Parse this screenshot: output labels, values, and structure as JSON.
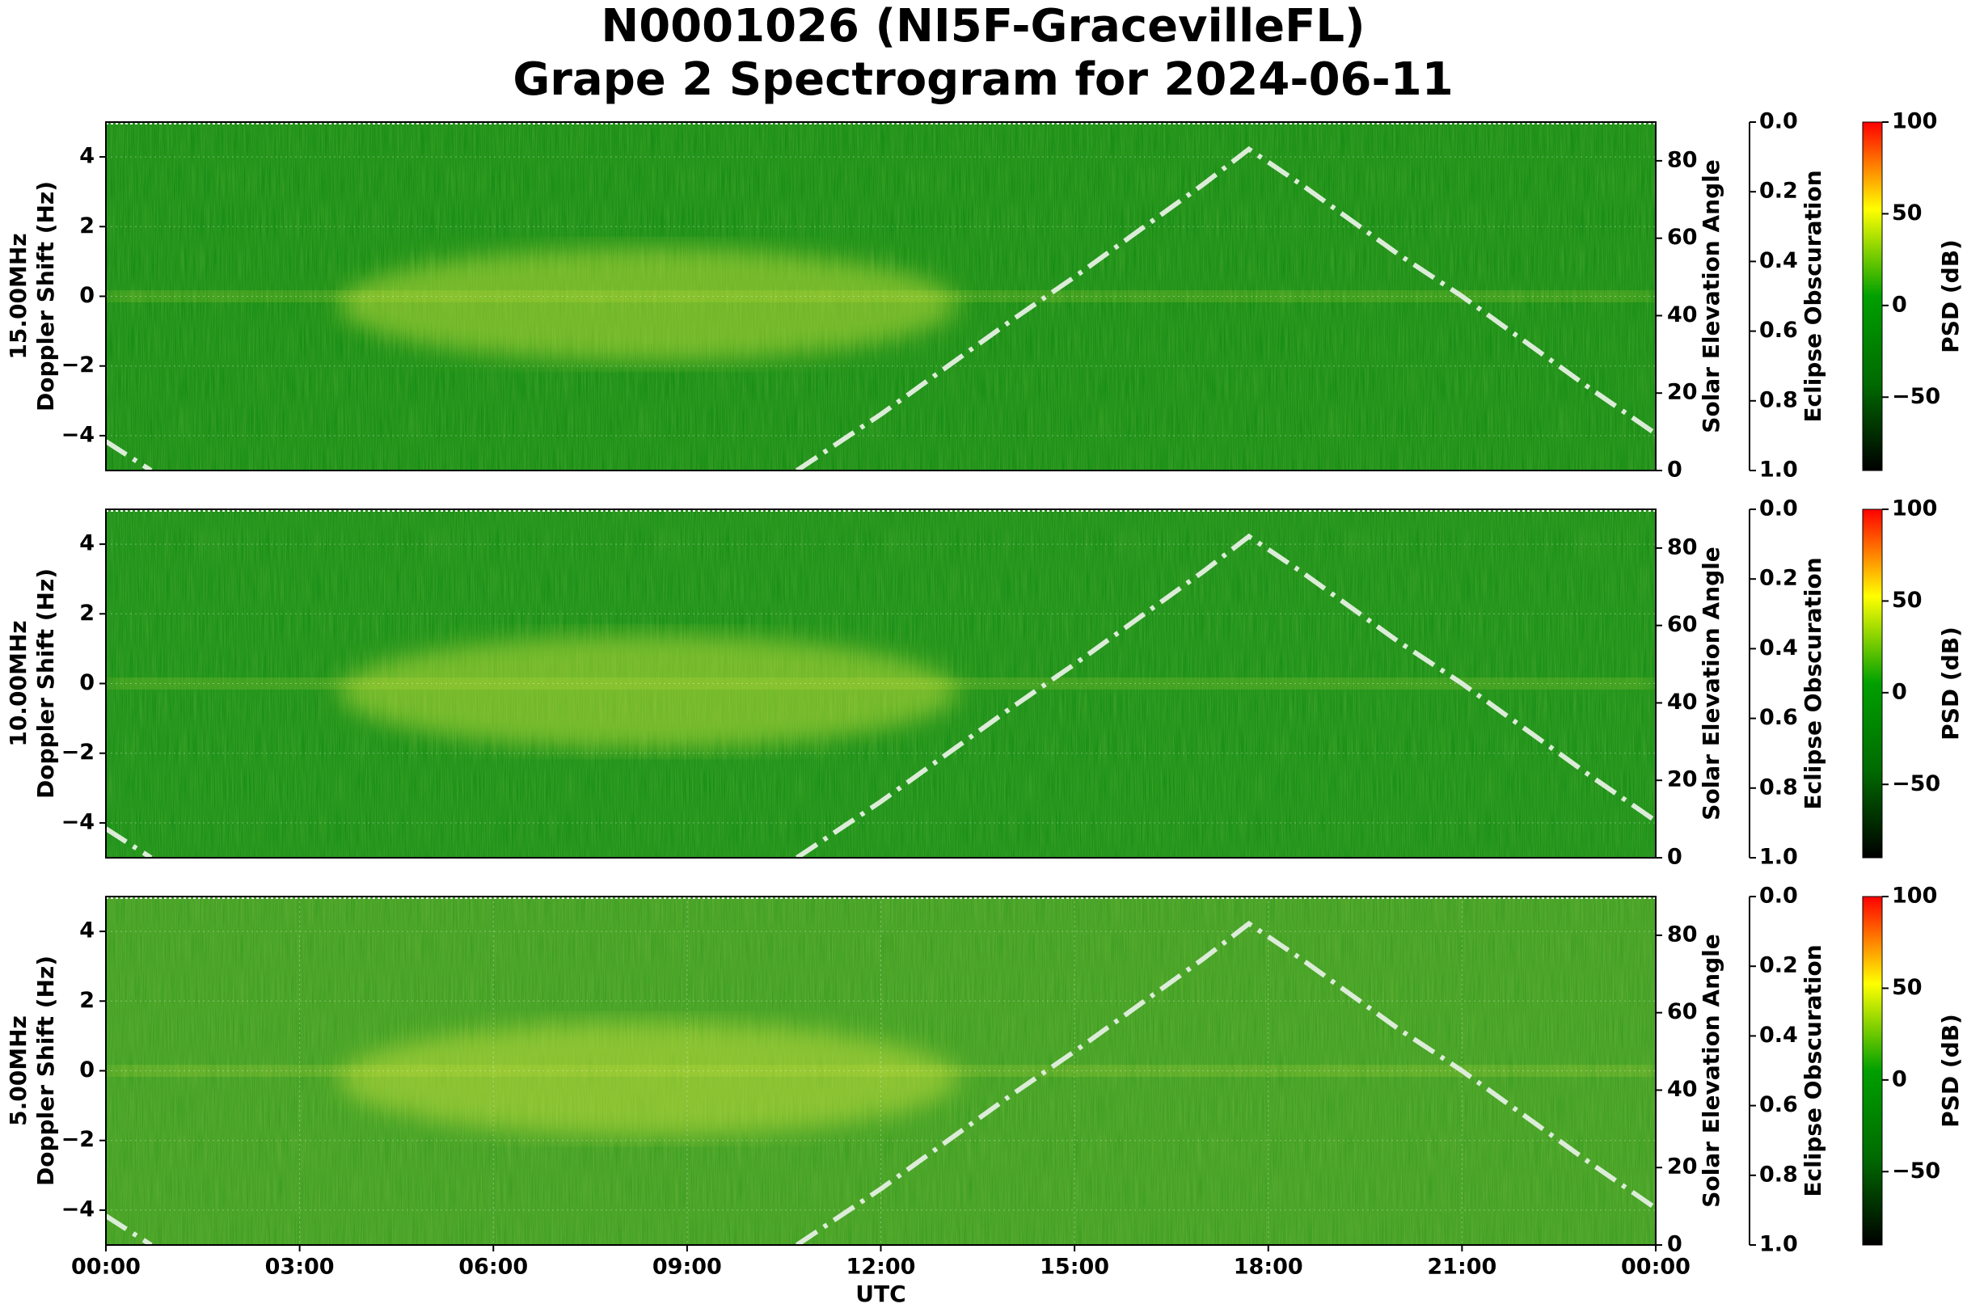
{
  "title": [
    "N0001026 (NI5F-GracevilleFL)",
    "Grape 2 Spectrogram for 2024-06-11"
  ],
  "chart_data": [
    {
      "type": "spectrogram",
      "ylabel": [
        "15.00MHz",
        "Doppler Shift (Hz)"
      ],
      "xlim": [
        0,
        24
      ],
      "ylim": [
        -5,
        5
      ],
      "yticks": [
        {
          "value": -4,
          "label": "−4"
        },
        {
          "value": -2,
          "label": "−2"
        },
        0,
        2,
        4
      ],
      "y2label": "Solar Elevation Angle",
      "y2lim": [
        0,
        90
      ],
      "y2ticks": [
        0,
        20,
        40,
        60,
        80
      ],
      "y3label": "Eclipse Obscuration",
      "y3lim": [
        1,
        0
      ],
      "y3ticks": [
        {
          "value": 0,
          "label": "0.0"
        },
        {
          "value": 0.2,
          "label": "0.2"
        },
        {
          "value": 0.4,
          "label": "0.4"
        },
        {
          "value": 0.6,
          "label": "0.6"
        },
        {
          "value": 0.8,
          "label": "0.8"
        },
        {
          "value": 1,
          "label": "1.0"
        }
      ],
      "colorbar": {
        "label": "PSD (dB)",
        "lim": [
          -90,
          100
        ],
        "ticks": [
          {
            "value": -50,
            "label": "−50"
          },
          0,
          50,
          100
        ],
        "colors": [
          "#000000",
          "#006a00",
          "#00a000",
          "#ffff00",
          "#ff0000"
        ]
      },
      "grid": true,
      "x": [
        0,
        0.7,
        5.7,
        10.7,
        12,
        13,
        14,
        15,
        16,
        17,
        17.7,
        18.5,
        19,
        20,
        21,
        22,
        23,
        24
      ],
      "series": [
        {
          "color": "#dcecd8",
          "axis": "y2",
          "values": [
            7.5,
            0,
            null,
            0,
            14.5,
            26.5,
            38.5,
            50,
            62,
            74,
            83,
            74,
            68,
            56,
            45,
            33,
            21,
            9.5
          ]
        }
      ]
    },
    {
      "type": "spectrogram",
      "ylabel": [
        "10.00MHz",
        "Doppler Shift (Hz)"
      ],
      "xlim": [
        0,
        24
      ],
      "ylim": [
        -5,
        5
      ],
      "yticks": [
        {
          "value": -4,
          "label": "−4"
        },
        {
          "value": -2,
          "label": "−2"
        },
        0,
        2,
        4
      ],
      "y2label": "Solar Elevation Angle",
      "y2lim": [
        0,
        90
      ],
      "y2ticks": [
        0,
        20,
        40,
        60,
        80
      ],
      "y3label": "Eclipse Obscuration",
      "y3lim": [
        1,
        0
      ],
      "y3ticks": [
        {
          "value": 0,
          "label": "0.0"
        },
        {
          "value": 0.2,
          "label": "0.2"
        },
        {
          "value": 0.4,
          "label": "0.4"
        },
        {
          "value": 0.6,
          "label": "0.6"
        },
        {
          "value": 0.8,
          "label": "0.8"
        },
        {
          "value": 1,
          "label": "1.0"
        }
      ],
      "colorbar": {
        "label": "PSD (dB)",
        "lim": [
          -90,
          100
        ],
        "ticks": [
          {
            "value": -50,
            "label": "−50"
          },
          0,
          50,
          100
        ],
        "colors": [
          "#000000",
          "#006a00",
          "#00a000",
          "#ffff00",
          "#ff0000"
        ]
      },
      "grid": true,
      "x": [
        0,
        0.7,
        5.7,
        10.7,
        12,
        13,
        14,
        15,
        16,
        17,
        17.7,
        18.5,
        19,
        20,
        21,
        22,
        23,
        24
      ],
      "series": [
        {
          "color": "#dcecd8",
          "axis": "y2",
          "values": [
            7.5,
            0,
            null,
            0,
            14.5,
            26.5,
            38.5,
            50,
            62,
            74,
            83,
            74,
            68,
            56,
            45,
            33,
            21,
            9.5
          ]
        }
      ]
    },
    {
      "type": "spectrogram",
      "ylabel": [
        "5.00MHz",
        "Doppler Shift (Hz)"
      ],
      "xlabel": "UTC",
      "xlim": [
        0,
        24
      ],
      "xticks": [
        {
          "value": 0,
          "label": "00:00"
        },
        {
          "value": 3,
          "label": "03:00"
        },
        {
          "value": 6,
          "label": "06:00"
        },
        {
          "value": 9,
          "label": "09:00"
        },
        {
          "value": 12,
          "label": "12:00"
        },
        {
          "value": 15,
          "label": "15:00"
        },
        {
          "value": 18,
          "label": "18:00"
        },
        {
          "value": 21,
          "label": "21:00"
        },
        {
          "value": 24,
          "label": "00:00"
        }
      ],
      "ylim": [
        -5,
        5
      ],
      "yticks": [
        {
          "value": -4,
          "label": "−4"
        },
        {
          "value": -2,
          "label": "−2"
        },
        0,
        2,
        4
      ],
      "y2label": "Solar Elevation Angle",
      "y2lim": [
        0,
        90
      ],
      "y2ticks": [
        0,
        20,
        40,
        60,
        80
      ],
      "y3label": "Eclipse Obscuration",
      "y3lim": [
        1,
        0
      ],
      "y3ticks": [
        {
          "value": 0,
          "label": "0.0"
        },
        {
          "value": 0.2,
          "label": "0.2"
        },
        {
          "value": 0.4,
          "label": "0.4"
        },
        {
          "value": 0.6,
          "label": "0.6"
        },
        {
          "value": 0.8,
          "label": "0.8"
        },
        {
          "value": 1,
          "label": "1.0"
        }
      ],
      "colorbar": {
        "label": "PSD (dB)",
        "lim": [
          -90,
          100
        ],
        "ticks": [
          {
            "value": -50,
            "label": "−50"
          },
          0,
          50,
          100
        ],
        "colors": [
          "#000000",
          "#006a00",
          "#00a000",
          "#ffff00",
          "#ff0000"
        ]
      },
      "grid": true,
      "x": [
        0,
        0.7,
        5.7,
        10.7,
        12,
        13,
        14,
        15,
        16,
        17,
        17.7,
        18.5,
        19,
        20,
        21,
        22,
        23,
        24
      ],
      "series": [
        {
          "color": "#dcecd8",
          "axis": "y2",
          "values": [
            7.5,
            0,
            null,
            0,
            14.5,
            26.5,
            38.5,
            50,
            62,
            74,
            83,
            74,
            68,
            56,
            45,
            33,
            21,
            9.5
          ]
        }
      ]
    }
  ]
}
